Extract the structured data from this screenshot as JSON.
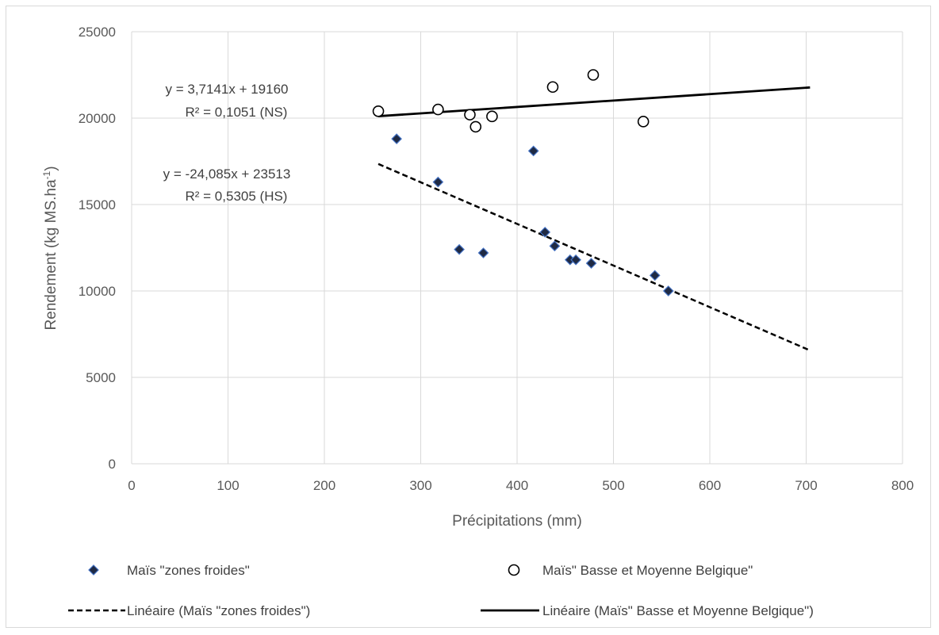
{
  "chart_data": {
    "type": "scatter",
    "xlabel": "Précipitations (mm)",
    "ylabel_main": "Rendement (kg MS.ha",
    "ylabel_sup": "-1",
    "ylabel_close": ")",
    "xlim": [
      0,
      800
    ],
    "ylim": [
      0,
      25000
    ],
    "x_ticks": [
      0,
      100,
      200,
      300,
      400,
      500,
      600,
      700,
      800
    ],
    "y_ticks": [
      0,
      5000,
      10000,
      15000,
      20000,
      25000
    ],
    "grid": true,
    "legend_position": "bottom",
    "series": [
      {
        "name": "Maïs \"zones froides\"",
        "marker": "diamond",
        "color": "#1f2a44",
        "edge": "#4472c4",
        "points": [
          [
            275,
            18800
          ],
          [
            318,
            16300
          ],
          [
            340,
            12400
          ],
          [
            365,
            12200
          ],
          [
            417,
            18100
          ],
          [
            429,
            13400
          ],
          [
            439,
            12600
          ],
          [
            455,
            11800
          ],
          [
            461,
            11800
          ],
          [
            477,
            11600
          ],
          [
            543,
            10900
          ],
          [
            557,
            10000
          ]
        ]
      },
      {
        "name": "Maïs\" Basse et Moyenne Belgique\"",
        "marker": "circle",
        "color": "#ffffff",
        "edge": "#000000",
        "points": [
          [
            256,
            20400
          ],
          [
            318,
            20500
          ],
          [
            351,
            20200
          ],
          [
            357,
            19500
          ],
          [
            374,
            20100
          ],
          [
            437,
            21800
          ],
          [
            479,
            22500
          ],
          [
            531,
            19800
          ]
        ]
      }
    ],
    "trendlines": [
      {
        "name": "Linéaire (Maïs \"zones froides\")",
        "style": "dashed",
        "slope": -24.085,
        "intercept": 23513,
        "x_range": [
          256,
          704
        ],
        "equation": "y = -24,085x + 23513",
        "r2": "R² = 0,5305 (HS)"
      },
      {
        "name": "Linéaire (Maïs\" Basse et Moyenne Belgique\")",
        "style": "solid",
        "slope": 3.7141,
        "intercept": 19160,
        "x_range": [
          256,
          704
        ],
        "equation": "y = 3,7141x + 19160",
        "r2": "R² = 0,1051 (NS)"
      }
    ]
  }
}
